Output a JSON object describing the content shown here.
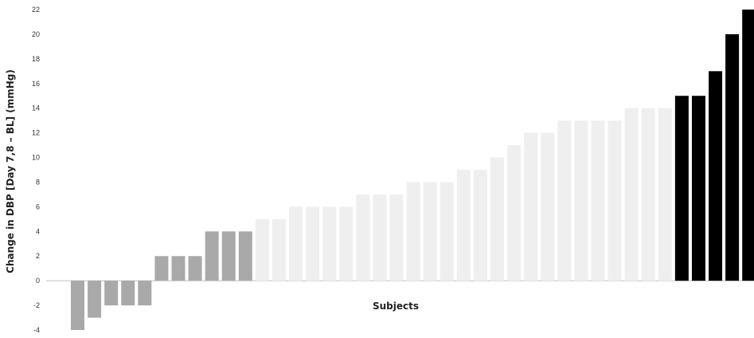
{
  "chart_data": {
    "type": "bar",
    "title": "",
    "xlabel": "Subjects",
    "ylabel": "Change in DBP [Day 7,8 – BL] (mmHg)",
    "ylim": [
      -4,
      22
    ],
    "yticks": [
      -4,
      -2,
      0,
      2,
      4,
      6,
      8,
      10,
      12,
      14,
      16,
      18,
      20,
      22
    ],
    "grid": false,
    "legend": "none",
    "series": [
      {
        "values": [
          -4,
          -3,
          -2,
          -2,
          -2,
          2,
          2,
          2,
          4,
          4,
          4,
          5,
          5,
          6,
          6,
          6,
          6,
          7,
          7,
          7,
          8,
          8,
          8,
          9,
          9,
          10,
          11,
          12,
          12,
          13,
          13,
          13,
          13,
          14,
          14,
          14,
          15,
          15,
          17,
          20,
          22
        ],
        "colors": [
          "#a9a9a9",
          "#a9a9a9",
          "#a9a9a9",
          "#a9a9a9",
          "#a9a9a9",
          "#a9a9a9",
          "#a9a9a9",
          "#a9a9a9",
          "#a9a9a9",
          "#a9a9a9",
          "#a9a9a9",
          "#efefef",
          "#efefef",
          "#efefef",
          "#efefef",
          "#efefef",
          "#efefef",
          "#efefef",
          "#efefef",
          "#efefef",
          "#efefef",
          "#efefef",
          "#efefef",
          "#efefef",
          "#efefef",
          "#efefef",
          "#efefef",
          "#efefef",
          "#efefef",
          "#efefef",
          "#efefef",
          "#efefef",
          "#efefef",
          "#efefef",
          "#efefef",
          "#efefef",
          "#000000",
          "#000000",
          "#000000",
          "#000000",
          "#000000"
        ]
      }
    ]
  }
}
